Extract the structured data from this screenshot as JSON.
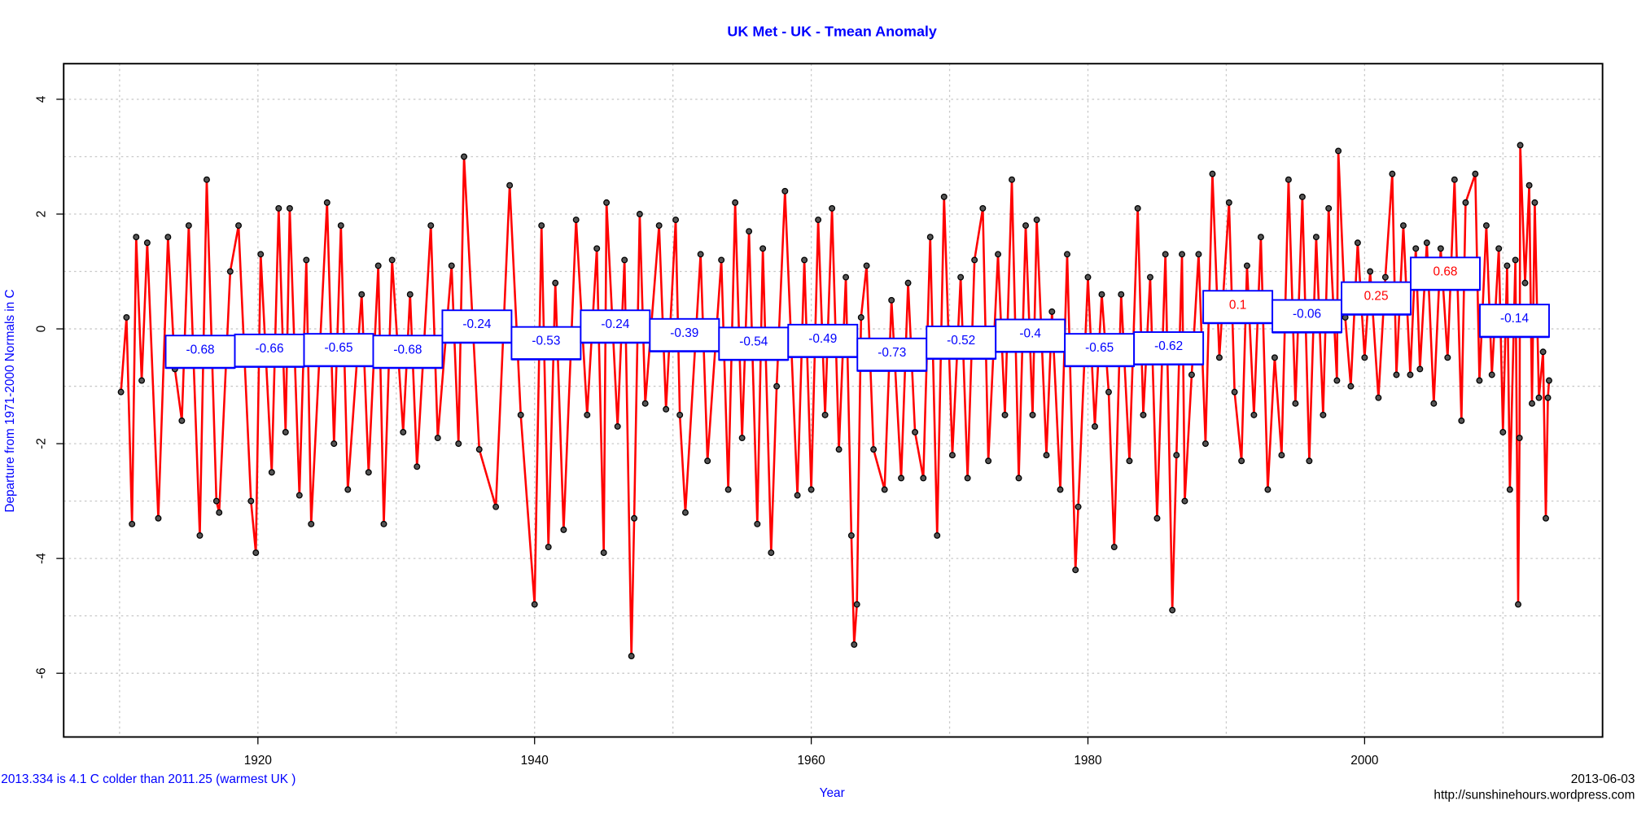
{
  "chart_data": {
    "type": "line",
    "title": "UK Met - UK - Tmean Anomaly",
    "x_label": "Year",
    "y_label": "Departure from 1971-2000 Normals in C",
    "note_left": "2013.334 is 4.1 C  colder than 2011.25 (warmest UK )",
    "date": "2013-06-03",
    "source": "http://sunshinehours.wordpress.com",
    "xlim": [
      1905.96,
      2017.2
    ],
    "ylim": [
      -7.11,
      4.62
    ],
    "xticks": [
      1920,
      1940,
      1960,
      1980,
      2000
    ],
    "yticks": [
      -6,
      -4,
      -2,
      0,
      2,
      4
    ],
    "xgrid": [
      1910,
      1920,
      1930,
      1940,
      1950,
      1960,
      1970,
      1980,
      1990,
      2000,
      2010
    ],
    "ygrid": [
      -6,
      -5,
      -4,
      -3,
      -2,
      -1,
      0,
      1,
      2,
      3,
      4
    ],
    "grid": true,
    "series": [
      {
        "color": "#ff0000",
        "marker_color": "#000000",
        "x": [
          1910.1,
          1910.5,
          1910.9,
          1911.2,
          1911.6,
          1912.0,
          1912.8,
          1913.5,
          1914.0,
          1914.5,
          1915.0,
          1915.8,
          1916.3,
          1917.0,
          1917.2,
          1918.0,
          1918.6,
          1919.5,
          1919.85,
          1920.2,
          1921.0,
          1921.5,
          1922.0,
          1922.3,
          1923.0,
          1923.5,
          1923.85,
          1925.0,
          1925.5,
          1926.0,
          1926.5,
          1927.5,
          1928.0,
          1928.7,
          1929.1,
          1929.7,
          1930.5,
          1931.0,
          1931.5,
          1932.5,
          1933.0,
          1934.0,
          1934.5,
          1934.9,
          1936.0,
          1937.2,
          1938.2,
          1939.0,
          1940.0,
          1940.5,
          1941.0,
          1941.5,
          1942.1,
          1943.0,
          1943.8,
          1944.5,
          1945.0,
          1945.2,
          1946.0,
          1946.5,
          1947.0,
          1947.2,
          1947.6,
          1948.0,
          1949.0,
          1949.5,
          1950.2,
          1950.5,
          1950.9,
          1952.0,
          1952.5,
          1953.5,
          1954.0,
          1954.5,
          1955.0,
          1955.5,
          1956.1,
          1956.5,
          1957.1,
          1957.5,
          1958.1,
          1959.0,
          1959.5,
          1960.0,
          1960.5,
          1961.0,
          1961.5,
          1962.0,
          1962.5,
          1962.9,
          1963.1,
          1963.3,
          1963.6,
          1964.0,
          1964.5,
          1965.3,
          1965.8,
          1966.5,
          1967.0,
          1967.5,
          1968.1,
          1968.6,
          1969.1,
          1969.6,
          1970.2,
          1970.8,
          1971.3,
          1971.8,
          1972.4,
          1972.8,
          1973.5,
          1974.0,
          1974.5,
          1975.0,
          1975.5,
          1976.0,
          1976.3,
          1977.0,
          1977.4,
          1978.0,
          1978.5,
          1979.1,
          1979.3,
          1980.0,
          1980.5,
          1981.0,
          1981.5,
          1981.9,
          1982.4,
          1983.0,
          1983.6,
          1984.0,
          1984.5,
          1985.0,
          1985.6,
          1986.1,
          1986.4,
          1986.8,
          1987.0,
          1987.5,
          1988.0,
          1988.5,
          1989.0,
          1989.5,
          1990.2,
          1990.6,
          1991.1,
          1991.5,
          1992.0,
          1992.5,
          1993.0,
          1993.5,
          1994.0,
          1994.5,
          1995.0,
          1995.5,
          1996.0,
          1996.5,
          1997.0,
          1997.4,
          1998.0,
          1998.1,
          1998.6,
          1999.0,
          1999.5,
          2000.0,
          2000.4,
          2001.0,
          2001.5,
          2002.0,
          2002.3,
          2002.8,
          2003.3,
          2003.7,
          2004.0,
          2004.5,
          2005.0,
          2005.5,
          2006.0,
          2006.5,
          2007.0,
          2007.3,
          2008.0,
          2008.3,
          2008.8,
          2009.2,
          2009.7,
          2010.0,
          2010.3,
          2010.5,
          2010.9,
          2011.1,
          2011.2,
          2011.25,
          2011.6,
          2011.9,
          2012.1,
          2012.3,
          2012.6,
          2012.9,
          2013.1,
          2013.25,
          2013.334
        ],
        "values": [
          -1.1,
          0.2,
          -3.4,
          1.6,
          -0.9,
          1.5,
          -3.3,
          1.6,
          -0.7,
          -1.6,
          1.8,
          -3.6,
          2.6,
          -3.0,
          -3.2,
          1.0,
          1.8,
          -3.0,
          -3.9,
          1.3,
          -2.5,
          2.1,
          -1.8,
          2.1,
          -2.9,
          1.2,
          -3.4,
          2.2,
          -2.0,
          1.8,
          -2.8,
          0.6,
          -2.5,
          1.1,
          -3.4,
          1.2,
          -1.8,
          0.6,
          -2.4,
          1.8,
          -1.9,
          1.1,
          -2.0,
          3.0,
          -2.1,
          -3.1,
          2.5,
          -1.5,
          -4.8,
          1.8,
          -3.8,
          0.8,
          -3.5,
          1.9,
          -1.5,
          1.4,
          -3.9,
          2.2,
          -1.7,
          1.2,
          -5.7,
          -3.3,
          2.0,
          -1.3,
          1.8,
          -1.4,
          1.9,
          -1.5,
          -3.2,
          1.3,
          -2.3,
          1.2,
          -2.8,
          2.2,
          -1.9,
          1.7,
          -3.4,
          1.4,
          -3.9,
          -1.0,
          2.4,
          -2.9,
          1.2,
          -2.8,
          1.9,
          -1.5,
          2.1,
          -2.1,
          0.9,
          -3.6,
          -5.5,
          -4.8,
          0.2,
          1.1,
          -2.1,
          -2.8,
          0.5,
          -2.6,
          0.8,
          -1.8,
          -2.6,
          1.6,
          -3.6,
          2.3,
          -2.2,
          0.9,
          -2.6,
          1.2,
          2.1,
          -2.3,
          1.3,
          -1.5,
          2.6,
          -2.6,
          1.8,
          -1.5,
          1.9,
          -2.2,
          0.3,
          -2.8,
          1.3,
          -4.2,
          -3.1,
          0.9,
          -1.7,
          0.6,
          -1.1,
          -3.8,
          0.6,
          -2.3,
          2.1,
          -1.5,
          0.9,
          -3.3,
          1.3,
          -4.9,
          -2.2,
          1.3,
          -3.0,
          -0.8,
          1.3,
          -2.0,
          2.7,
          -0.5,
          2.2,
          -1.1,
          -2.3,
          1.1,
          -1.5,
          1.6,
          -2.8,
          -0.5,
          -2.2,
          2.6,
          -1.3,
          2.3,
          -2.3,
          1.6,
          -1.5,
          2.1,
          -0.9,
          3.1,
          0.2,
          -1.0,
          1.5,
          -0.5,
          1.0,
          -1.2,
          0.9,
          2.7,
          -0.8,
          1.8,
          -0.8,
          1.4,
          -0.7,
          1.5,
          -1.3,
          1.4,
          -0.5,
          2.6,
          -1.6,
          2.2,
          2.7,
          -0.9,
          1.8,
          -0.8,
          1.4,
          -1.8,
          1.1,
          -2.8,
          1.2,
          -4.8,
          -1.9,
          3.2,
          0.8,
          2.5,
          -1.3,
          2.2,
          -1.2,
          -0.4,
          -3.3,
          -1.2,
          -0.9
        ]
      }
    ],
    "means": {
      "color": "#0000ff",
      "positive_label_color": "#ff0000",
      "negative_label_color": "#0000ff",
      "start": [
        1913.334,
        1918.334,
        1923.334,
        1928.334,
        1933.334,
        1938.334,
        1943.334,
        1948.334,
        1953.334,
        1958.334,
        1963.334,
        1968.334,
        1973.334,
        1978.334,
        1983.334,
        1988.334,
        1993.334,
        1998.334,
        2003.334,
        2008.334
      ],
      "end": [
        1918.334,
        1923.334,
        1928.334,
        1933.334,
        1938.334,
        1943.334,
        1948.334,
        1953.334,
        1958.334,
        1963.334,
        1968.334,
        1973.334,
        1978.334,
        1983.334,
        1988.334,
        1993.334,
        1998.334,
        2003.334,
        2008.334,
        2013.334
      ],
      "values": [
        -0.68,
        -0.66,
        -0.65,
        -0.68,
        -0.24,
        -0.53,
        -0.24,
        -0.39,
        -0.54,
        -0.49,
        -0.73,
        -0.52,
        -0.4,
        -0.65,
        -0.62,
        0.1,
        -0.06,
        0.25,
        0.68,
        -0.14
      ]
    }
  }
}
